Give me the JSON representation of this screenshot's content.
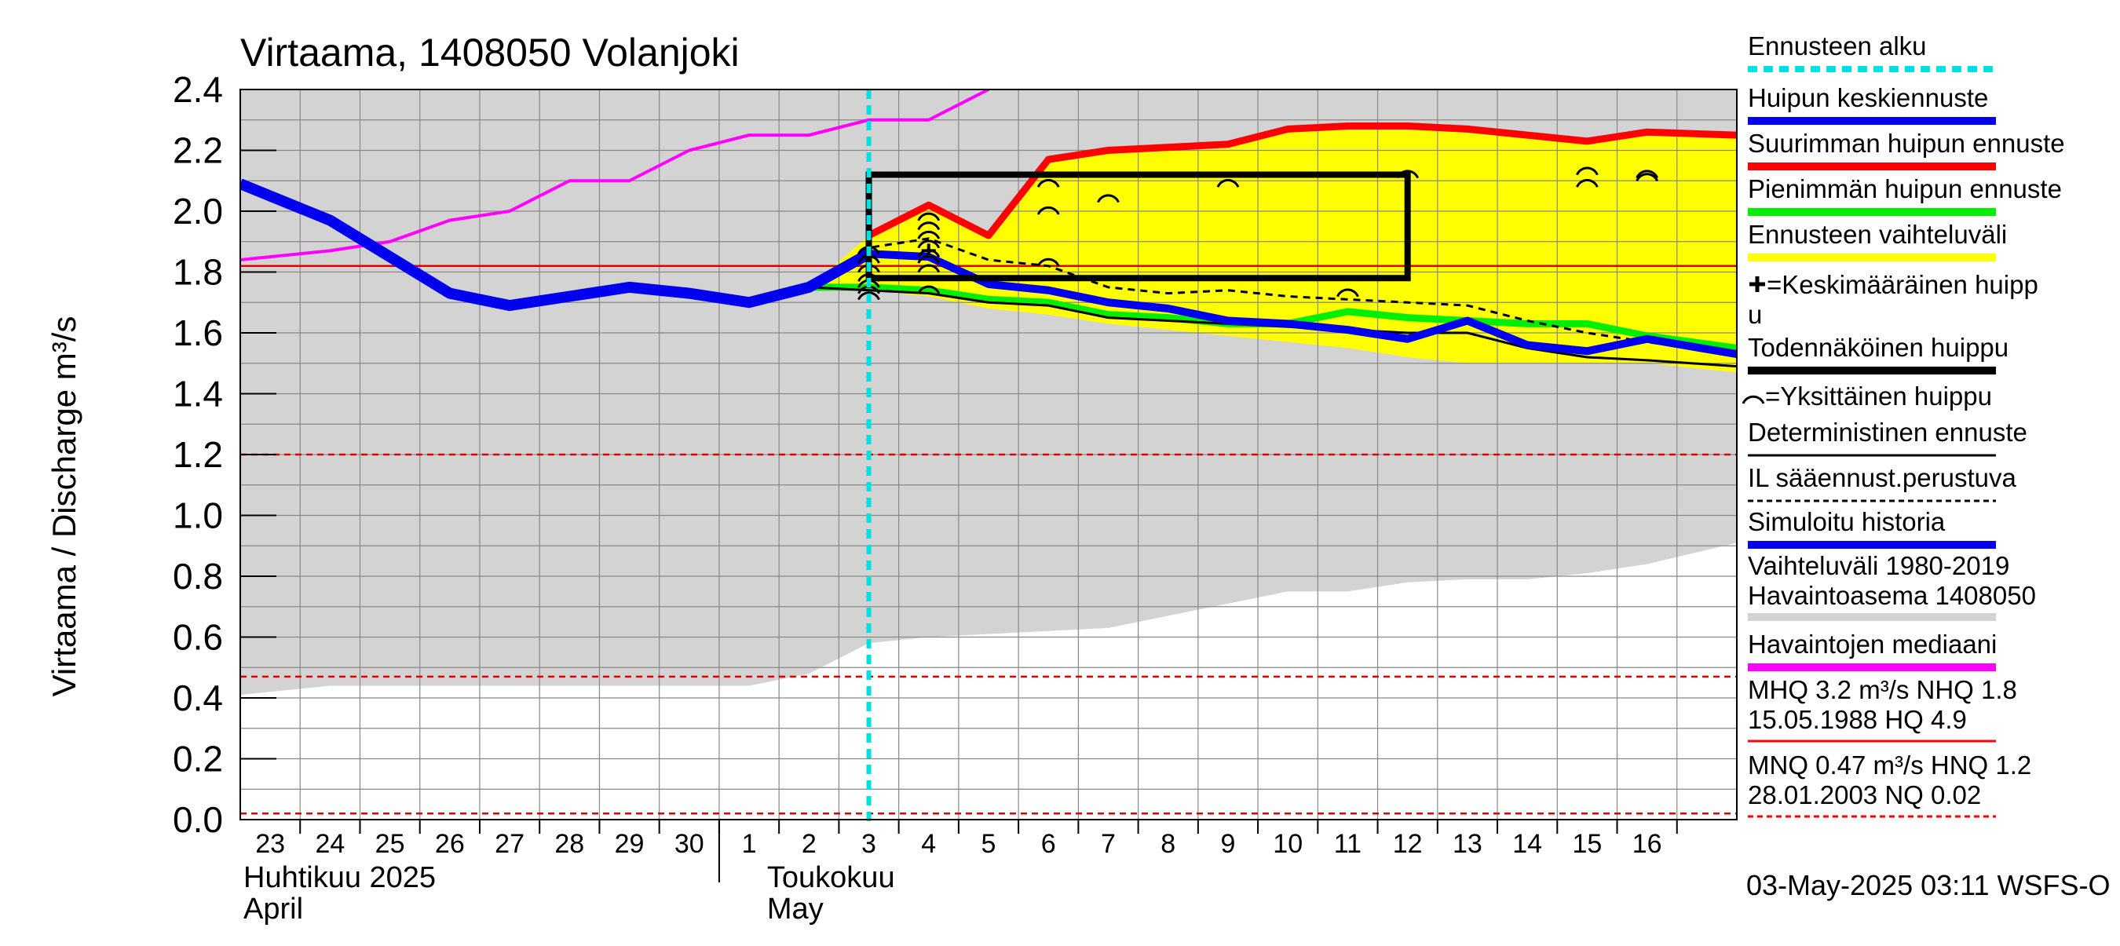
{
  "chart_data": {
    "type": "line",
    "title": "Virtaama, 1408050 Volanjoki",
    "ylabel": "Virtaama / Discharge   m³/s",
    "ylim": [
      0,
      2.4
    ],
    "y_ticks": [
      "0.0",
      "0.2",
      "0.4",
      "0.6",
      "0.8",
      "1.0",
      "1.2",
      "1.4",
      "1.6",
      "1.8",
      "2.0",
      "2.2",
      "2.4"
    ],
    "x_range": [
      22.5,
      47.5
    ],
    "x_ticks": [
      {
        "x": 23,
        "label": "23"
      },
      {
        "x": 24,
        "label": "24"
      },
      {
        "x": 25,
        "label": "25"
      },
      {
        "x": 26,
        "label": "26"
      },
      {
        "x": 27,
        "label": "27"
      },
      {
        "x": 28,
        "label": "28"
      },
      {
        "x": 29,
        "label": "29"
      },
      {
        "x": 30,
        "label": "30"
      },
      {
        "x": 31,
        "label": "1"
      },
      {
        "x": 32,
        "label": "2"
      },
      {
        "x": 33,
        "label": "3"
      },
      {
        "x": 34,
        "label": "4"
      },
      {
        "x": 35,
        "label": "5"
      },
      {
        "x": 36,
        "label": "6"
      },
      {
        "x": 37,
        "label": "7"
      },
      {
        "x": 38,
        "label": "8"
      },
      {
        "x": 39,
        "label": "9"
      },
      {
        "x": 40,
        "label": "10"
      },
      {
        "x": 41,
        "label": "11"
      },
      {
        "x": 42,
        "label": "12"
      },
      {
        "x": 43,
        "label": "13"
      },
      {
        "x": 44,
        "label": "14"
      },
      {
        "x": 45,
        "label": "15"
      },
      {
        "x": 46,
        "label": "16"
      }
    ],
    "month_labels": {
      "april_fi": "Huhtikuu  2025",
      "april_en": "April",
      "may_fi": "Toukokuu",
      "may_en": "May"
    },
    "forecast_start_x": 33.0,
    "reference_lines": {
      "hq_solid": 1.82,
      "hnq_dashed": 1.2,
      "mnq_dashed": 0.47,
      "nq_dashed": 0.02
    },
    "historical_range": {
      "x": [
        22.5,
        24,
        30,
        31,
        32,
        33,
        34,
        35,
        36,
        37,
        38,
        39,
        40,
        41,
        42,
        43,
        44,
        45,
        46,
        47.5
      ],
      "upper": [
        2.4,
        2.4,
        2.4,
        2.4,
        2.4,
        2.4,
        2.4,
        2.4,
        2.4,
        2.4,
        2.4,
        2.4,
        2.4,
        2.4,
        2.4,
        2.4,
        2.4,
        2.4,
        2.4,
        2.4
      ],
      "lower": [
        0.41,
        0.44,
        0.44,
        0.44,
        0.48,
        0.58,
        0.6,
        0.61,
        0.62,
        0.63,
        0.67,
        0.71,
        0.75,
        0.75,
        0.78,
        0.79,
        0.79,
        0.81,
        0.84,
        0.91
      ]
    },
    "forecast_band": {
      "x": [
        32,
        33,
        34,
        35,
        36,
        37,
        38,
        39,
        40,
        41,
        42,
        43,
        44,
        45,
        46,
        47.5
      ],
      "upper": [
        1.75,
        1.92,
        2.02,
        1.92,
        2.18,
        2.21,
        2.22,
        2.22,
        2.27,
        2.28,
        2.28,
        2.27,
        2.25,
        2.23,
        2.26,
        2.25
      ],
      "lower": [
        1.74,
        1.74,
        1.72,
        1.68,
        1.66,
        1.63,
        1.61,
        1.59,
        1.57,
        1.55,
        1.52,
        1.5,
        1.5,
        1.5,
        1.5,
        1.47
      ]
    },
    "series": [
      {
        "name": "Havaintojen mediaani",
        "color": "#ff00ff",
        "x": [
          22.5,
          24,
          25,
          26,
          27,
          28,
          29,
          30,
          31,
          32,
          33,
          34,
          35
        ],
        "y": [
          1.84,
          1.87,
          1.9,
          1.97,
          2.0,
          2.1,
          2.1,
          2.2,
          2.25,
          2.25,
          2.3,
          2.3,
          2.4
        ]
      },
      {
        "name": "Simuloitu historia",
        "color": "#0000ee",
        "x": [
          22.5,
          24,
          25,
          26,
          27,
          28,
          29,
          30,
          31,
          32,
          33
        ],
        "y": [
          2.09,
          1.97,
          1.85,
          1.73,
          1.69,
          1.72,
          1.75,
          1.73,
          1.7,
          1.75,
          1.86
        ]
      },
      {
        "name": "Huipun keskiennuste",
        "color": "#0000ee",
        "x": [
          33,
          34,
          35,
          36,
          37,
          38,
          39,
          40,
          41,
          42,
          43,
          44,
          45,
          46,
          47.5
        ],
        "y": [
          1.86,
          1.85,
          1.76,
          1.74,
          1.7,
          1.68,
          1.64,
          1.63,
          1.61,
          1.58,
          1.64,
          1.56,
          1.54,
          1.58,
          1.53
        ]
      },
      {
        "name": "Suurimman huipun ennuste",
        "color": "#ff0000",
        "x": [
          33,
          34,
          35,
          36,
          37,
          38,
          39,
          40,
          41,
          42,
          43,
          44,
          45,
          46,
          47.5
        ],
        "y": [
          1.92,
          2.02,
          1.92,
          2.17,
          2.2,
          2.21,
          2.22,
          2.27,
          2.28,
          2.28,
          2.27,
          2.25,
          2.23,
          2.26,
          2.25
        ]
      },
      {
        "name": "Pienimmän huipun ennuste",
        "color": "#00ee00",
        "x": [
          32,
          33,
          34,
          35,
          36,
          37,
          38,
          39,
          40,
          41,
          42,
          43,
          44,
          45,
          46,
          47.5
        ],
        "y": [
          1.75,
          1.75,
          1.74,
          1.71,
          1.7,
          1.66,
          1.65,
          1.63,
          1.63,
          1.67,
          1.65,
          1.64,
          1.63,
          1.63,
          1.59,
          1.55
        ]
      },
      {
        "name": "Deterministinen ennuste",
        "color": "#000000",
        "x": [
          32,
          33,
          34,
          35,
          36,
          37,
          38,
          39,
          40,
          41,
          42,
          43,
          44,
          45,
          46,
          47.5
        ],
        "y": [
          1.75,
          1.74,
          1.73,
          1.7,
          1.69,
          1.65,
          1.64,
          1.63,
          1.62,
          1.61,
          1.6,
          1.6,
          1.55,
          1.52,
          1.51,
          1.49
        ]
      },
      {
        "name": "IL sääennust.perustuva",
        "color": "#000000",
        "dashed": true,
        "x": [
          32,
          33,
          34,
          35,
          36,
          37,
          38,
          39,
          40,
          41,
          42,
          43,
          44,
          45,
          46,
          47.5
        ],
        "y": [
          1.75,
          1.88,
          1.91,
          1.84,
          1.82,
          1.75,
          1.73,
          1.74,
          1.72,
          1.71,
          1.7,
          1.69,
          1.64,
          1.6,
          1.57,
          1.53
        ]
      }
    ],
    "probable_peak_box": {
      "x0": 33,
      "x1": 42,
      "y0": 1.78,
      "y1": 2.12
    },
    "single_peaks": [
      {
        "x": 33,
        "y": 1.73
      },
      {
        "x": 33,
        "y": 1.75
      },
      {
        "x": 33,
        "y": 1.77
      },
      {
        "x": 33,
        "y": 1.79
      },
      {
        "x": 33,
        "y": 1.82
      },
      {
        "x": 33,
        "y": 1.85
      },
      {
        "x": 33,
        "y": 1.88
      },
      {
        "x": 34,
        "y": 1.75
      },
      {
        "x": 34,
        "y": 1.82
      },
      {
        "x": 34,
        "y": 1.85
      },
      {
        "x": 34,
        "y": 1.87
      },
      {
        "x": 34,
        "y": 1.9
      },
      {
        "x": 34,
        "y": 1.93
      },
      {
        "x": 34,
        "y": 1.96
      },
      {
        "x": 34,
        "y": 1.99
      },
      {
        "x": 36,
        "y": 1.84
      },
      {
        "x": 36,
        "y": 2.01
      },
      {
        "x": 36,
        "y": 2.1
      },
      {
        "x": 37,
        "y": 2.05
      },
      {
        "x": 39,
        "y": 2.1
      },
      {
        "x": 41,
        "y": 1.74
      },
      {
        "x": 42,
        "y": 2.13
      },
      {
        "x": 45,
        "y": 2.1
      },
      {
        "x": 45,
        "y": 2.14
      },
      {
        "x": 46,
        "y": 2.12
      },
      {
        "x": 46,
        "y": 2.13
      }
    ],
    "mean_peak_marks": [
      {
        "x": 33,
        "y": 1.85
      },
      {
        "x": 34,
        "y": 1.87
      }
    ]
  },
  "legend": {
    "items": [
      {
        "label": "Ennusteen alku",
        "color": "#00e0e0",
        "style": "dotted"
      },
      {
        "label": "Huipun keskiennuste",
        "color": "#0000ee",
        "style": "line"
      },
      {
        "label": "Suurimman huipun ennuste",
        "color": "#ff0000",
        "style": "line"
      },
      {
        "label": "Pienimmän huipun ennuste",
        "color": "#00ee00",
        "style": "line"
      },
      {
        "label": "Ennusteen vaihteluväli",
        "color": "#ffff00",
        "style": "line"
      },
      {
        "label": "=Keskimääräinen huipp",
        "label2": "u",
        "color": "#000000",
        "style": "none"
      },
      {
        "label": "Todennäköinen huippu",
        "color": "#000000",
        "style": "line"
      },
      {
        "label": "=Yksittäinen huippu",
        "color": "#000000",
        "style": "none"
      },
      {
        "label": "Deterministinen ennuste",
        "color": "#000000",
        "style": "thin"
      },
      {
        "label": "IL sääennust.perustuva",
        "color": "#000000",
        "style": "dashed"
      },
      {
        "label": "Simuloitu historia",
        "color": "#0000ee",
        "style": "line"
      },
      {
        "label": "Vaihteluväli 1980-2019",
        "label2": " Havaintoasema 1408050",
        "color": "#d3d3d3",
        "style": "line"
      },
      {
        "label": "Havaintojen mediaani",
        "color": "#ff00ff",
        "style": "line"
      },
      {
        "label": "MHQ  3.2 m³/s NHQ  1.8",
        "label2": "15.05.1988 HQ  4.9",
        "color": "#ff0000",
        "style": "thin"
      },
      {
        "label": "MNQ 0.47 m³/s HNQ  1.2",
        "label2": "28.01.2003 NQ 0.02",
        "color": "#ff0000",
        "style": "dashed"
      }
    ]
  },
  "footer": {
    "timestamp": "03-May-2025 03:11 WSFS-O"
  }
}
